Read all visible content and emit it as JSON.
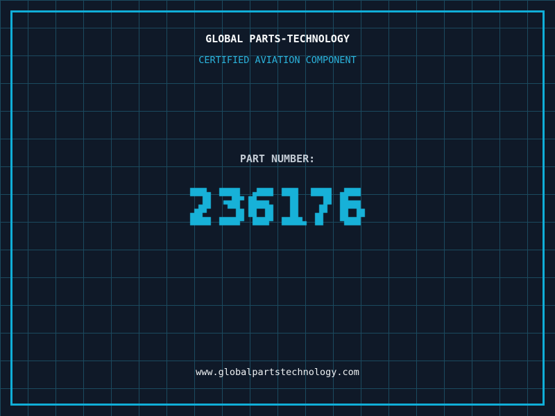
{
  "page": {
    "title": "GLOBAL PARTS-TECHNOLOGY",
    "subtitle": "CERTIFIED AVIATION COMPONENT",
    "part_label": "PART NUMBER:",
    "part_number": "236176",
    "website": "www.globalpartstechnology.com"
  },
  "colors": {
    "background": "#0f1928",
    "grid_line": "#1b4a5f",
    "frame_border": "#10aed8",
    "part_number": "#17b1d8",
    "title": "#f8fafb",
    "subtitle": "#2bb3dc",
    "part_label": "#c4ccd5",
    "website": "#eef1f3"
  }
}
